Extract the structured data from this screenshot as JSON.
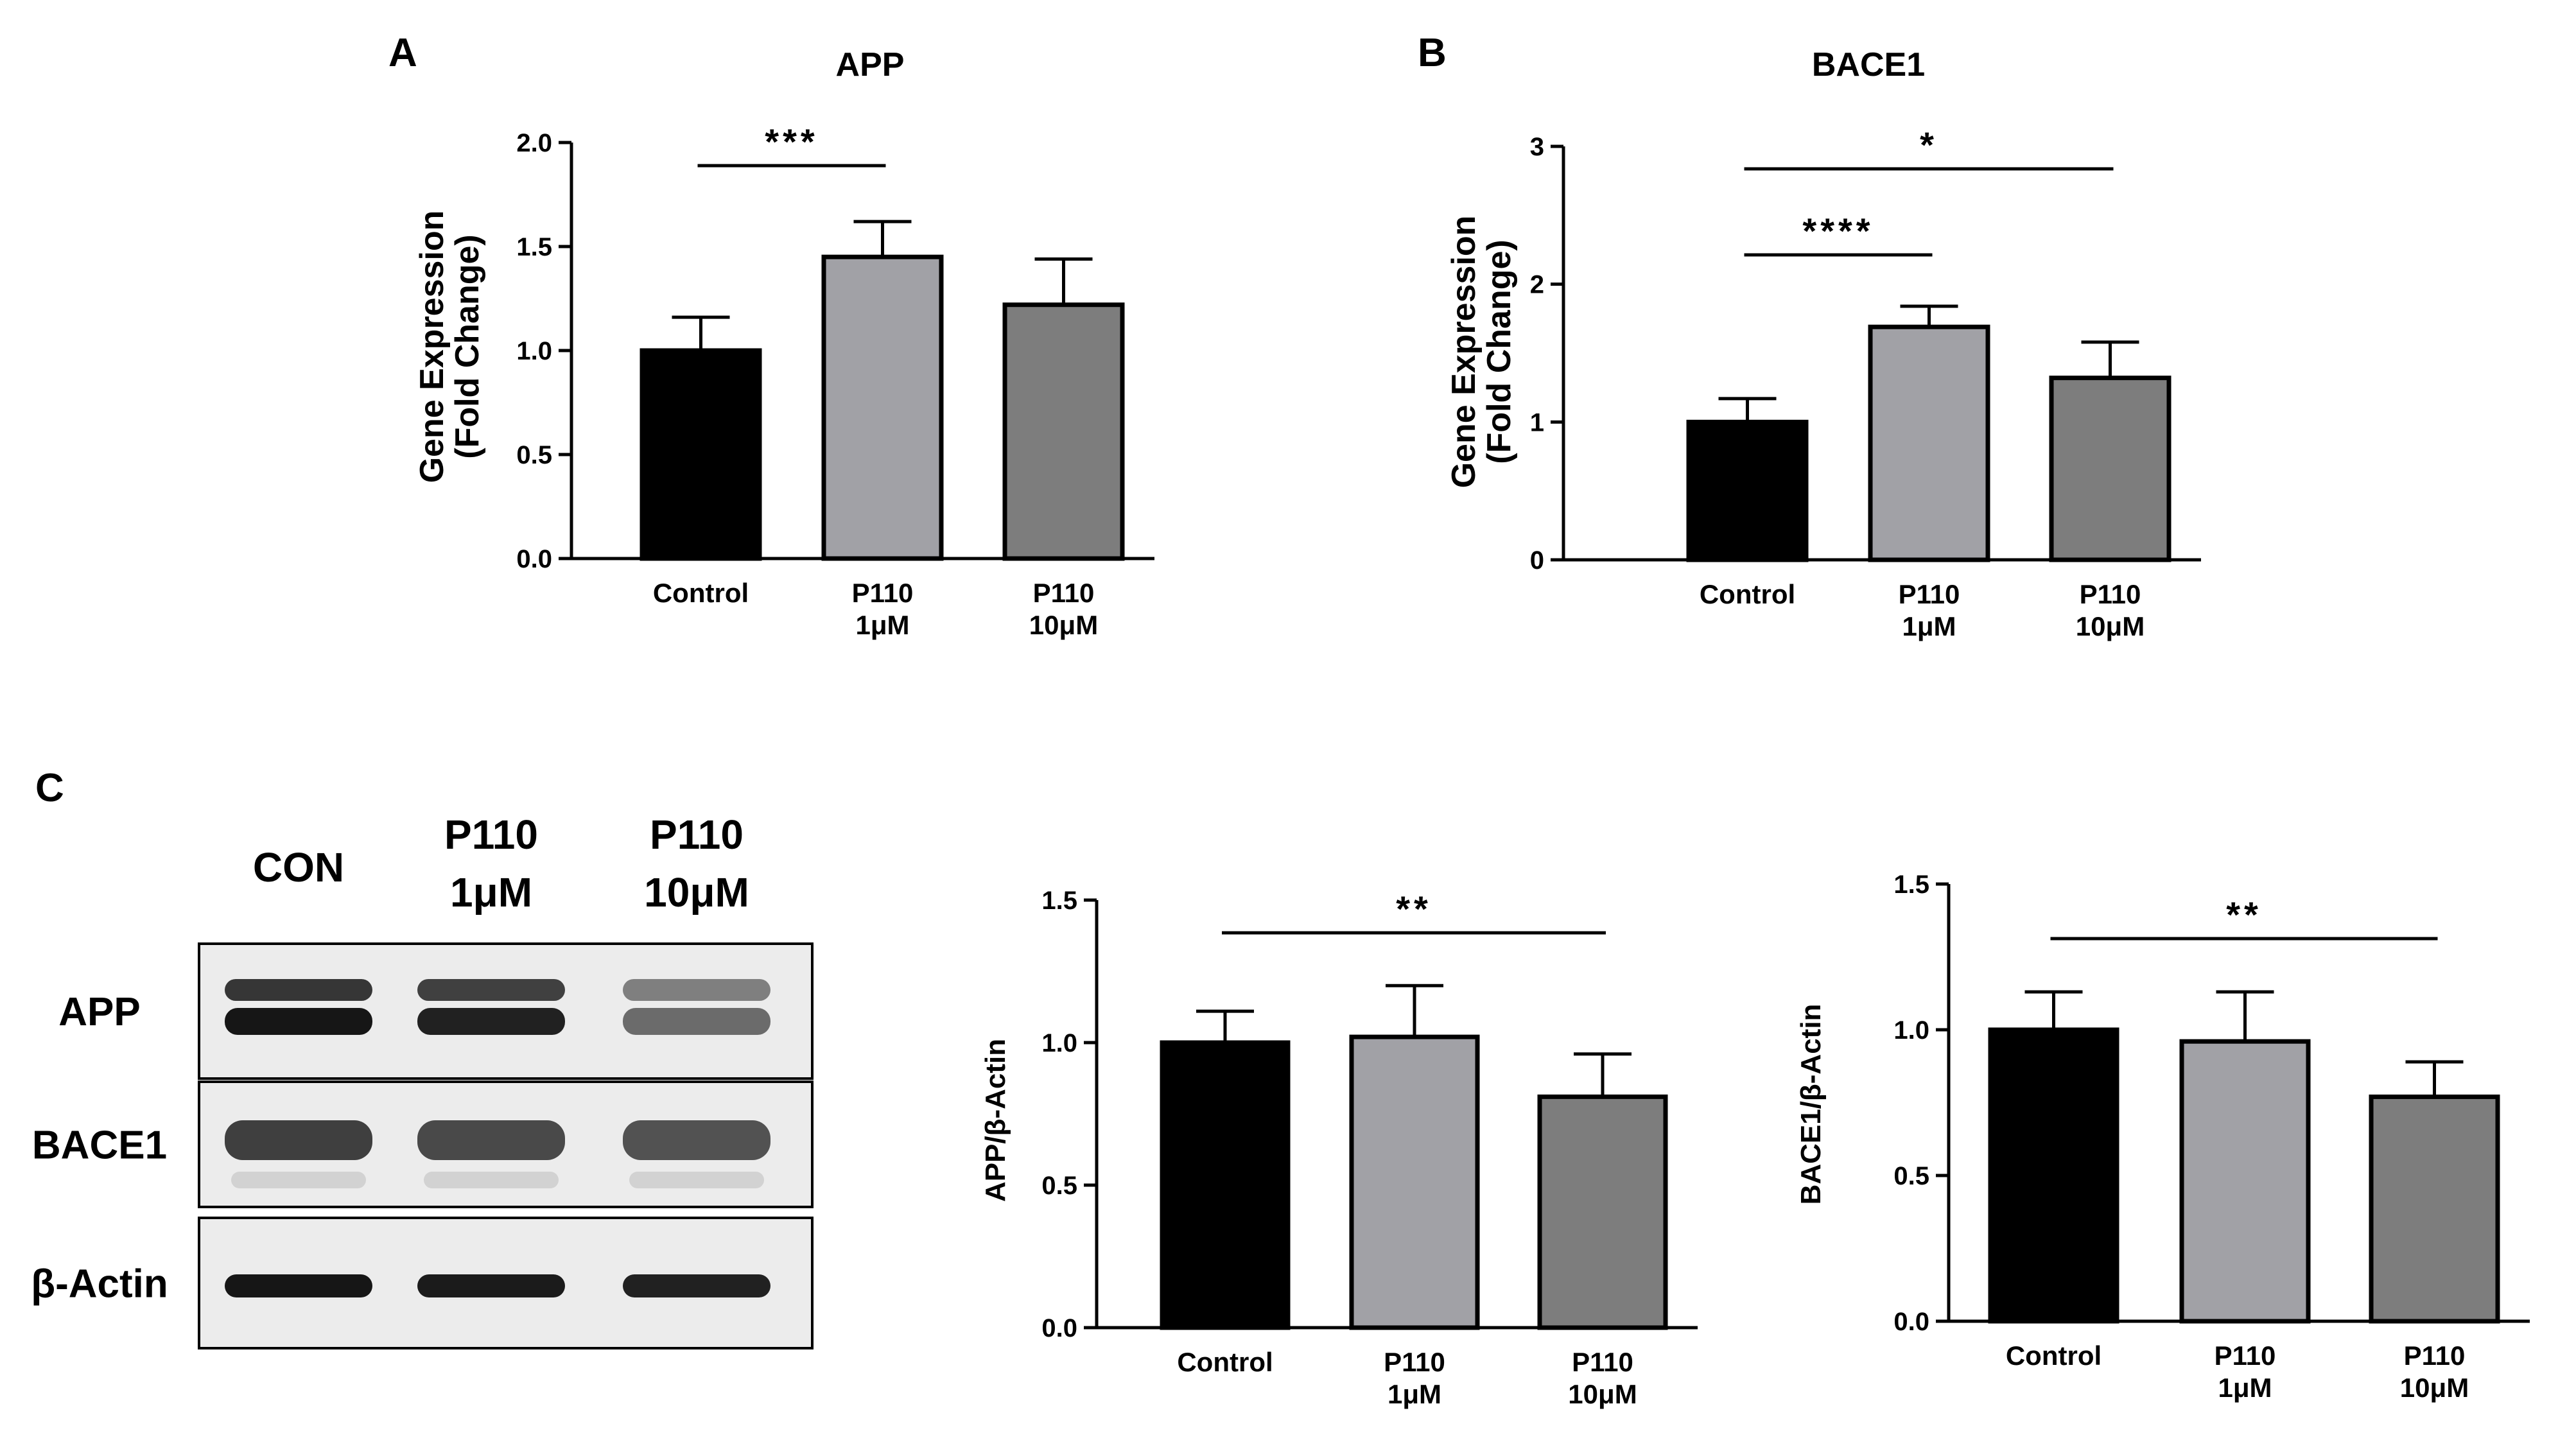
{
  "panels": [
    {
      "letter": "A"
    },
    {
      "letter": "B"
    },
    {
      "letter": "C"
    }
  ],
  "colors": {
    "control": "#000000",
    "p110_1um": "#a1a1a6",
    "p110_10um": "#7d7d7d",
    "blot_bg": "#ececec",
    "band": "#161616"
  },
  "blot": {
    "lanes": [
      {
        "line1": "CON",
        "line2": ""
      },
      {
        "line1": "P110",
        "line2": "1μM"
      },
      {
        "line1": "P110",
        "line2": "10μM"
      }
    ],
    "rows": [
      {
        "label": "APP"
      },
      {
        "label": "BACE1"
      },
      {
        "label": "β-Actin"
      }
    ],
    "band_intensity": [
      [
        1.0,
        0.95,
        0.6
      ],
      [
        0.9,
        0.85,
        0.8
      ],
      [
        1.0,
        0.98,
        0.95
      ]
    ]
  },
  "chart_data": [
    {
      "type": "bar",
      "title": "APP",
      "ylabel_line1": "Gene Expression",
      "ylabel_line2": "(Fold Change)",
      "xlabel": "",
      "categories": [
        {
          "line1": "Control",
          "line2": ""
        },
        {
          "line1": "P110",
          "line2": "1μM"
        },
        {
          "line1": "P110",
          "line2": "10μM"
        }
      ],
      "values": [
        1.0,
        1.45,
        1.22
      ],
      "errors": [
        0.16,
        0.17,
        0.22
      ],
      "ylim": [
        0,
        2.0
      ],
      "yticks": [
        "0.0",
        "0.5",
        "1.0",
        "1.5",
        "2.0"
      ],
      "significance": [
        {
          "from": 0,
          "to": 1,
          "label": "***"
        }
      ],
      "grid": false
    },
    {
      "type": "bar",
      "title": "BACE1",
      "ylabel_line1": "Gene Expression",
      "ylabel_line2": "(Fold Change)",
      "xlabel": "",
      "categories": [
        {
          "line1": "Control",
          "line2": ""
        },
        {
          "line1": "P110",
          "line2": "1μM"
        },
        {
          "line1": "P110",
          "line2": "10μM"
        }
      ],
      "values": [
        1.0,
        1.69,
        1.32
      ],
      "errors": [
        0.17,
        0.15,
        0.26
      ],
      "ylim": [
        0,
        3
      ],
      "yticks": [
        "0",
        "1",
        "2",
        "3"
      ],
      "significance": [
        {
          "from": 0,
          "to": 2,
          "label": "*"
        },
        {
          "from": 0,
          "to": 1,
          "label": "****"
        }
      ],
      "grid": false
    },
    {
      "type": "bar",
      "title": "",
      "ylabel_line1": "APP/β-Actin",
      "ylabel_line2": "",
      "xlabel": "",
      "categories": [
        {
          "line1": "Control",
          "line2": ""
        },
        {
          "line1": "P110",
          "line2": "1μM"
        },
        {
          "line1": "P110",
          "line2": "10μM"
        }
      ],
      "values": [
        1.0,
        1.02,
        0.81
      ],
      "errors": [
        0.11,
        0.18,
        0.15
      ],
      "ylim": [
        0,
        1.5
      ],
      "yticks": [
        "0.0",
        "0.5",
        "1.0",
        "1.5"
      ],
      "significance": [
        {
          "from": 0,
          "to": 2,
          "label": "**"
        }
      ],
      "grid": false
    },
    {
      "type": "bar",
      "title": "",
      "ylabel_line1": "BACE1/β-Actin",
      "ylabel_line2": "",
      "xlabel": "",
      "categories": [
        {
          "line1": "Control",
          "line2": ""
        },
        {
          "line1": "P110",
          "line2": "1μM"
        },
        {
          "line1": "P110",
          "line2": "10μM"
        }
      ],
      "values": [
        1.0,
        0.96,
        0.77
      ],
      "errors": [
        0.13,
        0.17,
        0.12
      ],
      "ylim": [
        0,
        1.5
      ],
      "yticks": [
        "0.0",
        "0.5",
        "1.0",
        "1.5"
      ],
      "significance": [
        {
          "from": 0,
          "to": 2,
          "label": "**"
        }
      ],
      "grid": false
    }
  ]
}
